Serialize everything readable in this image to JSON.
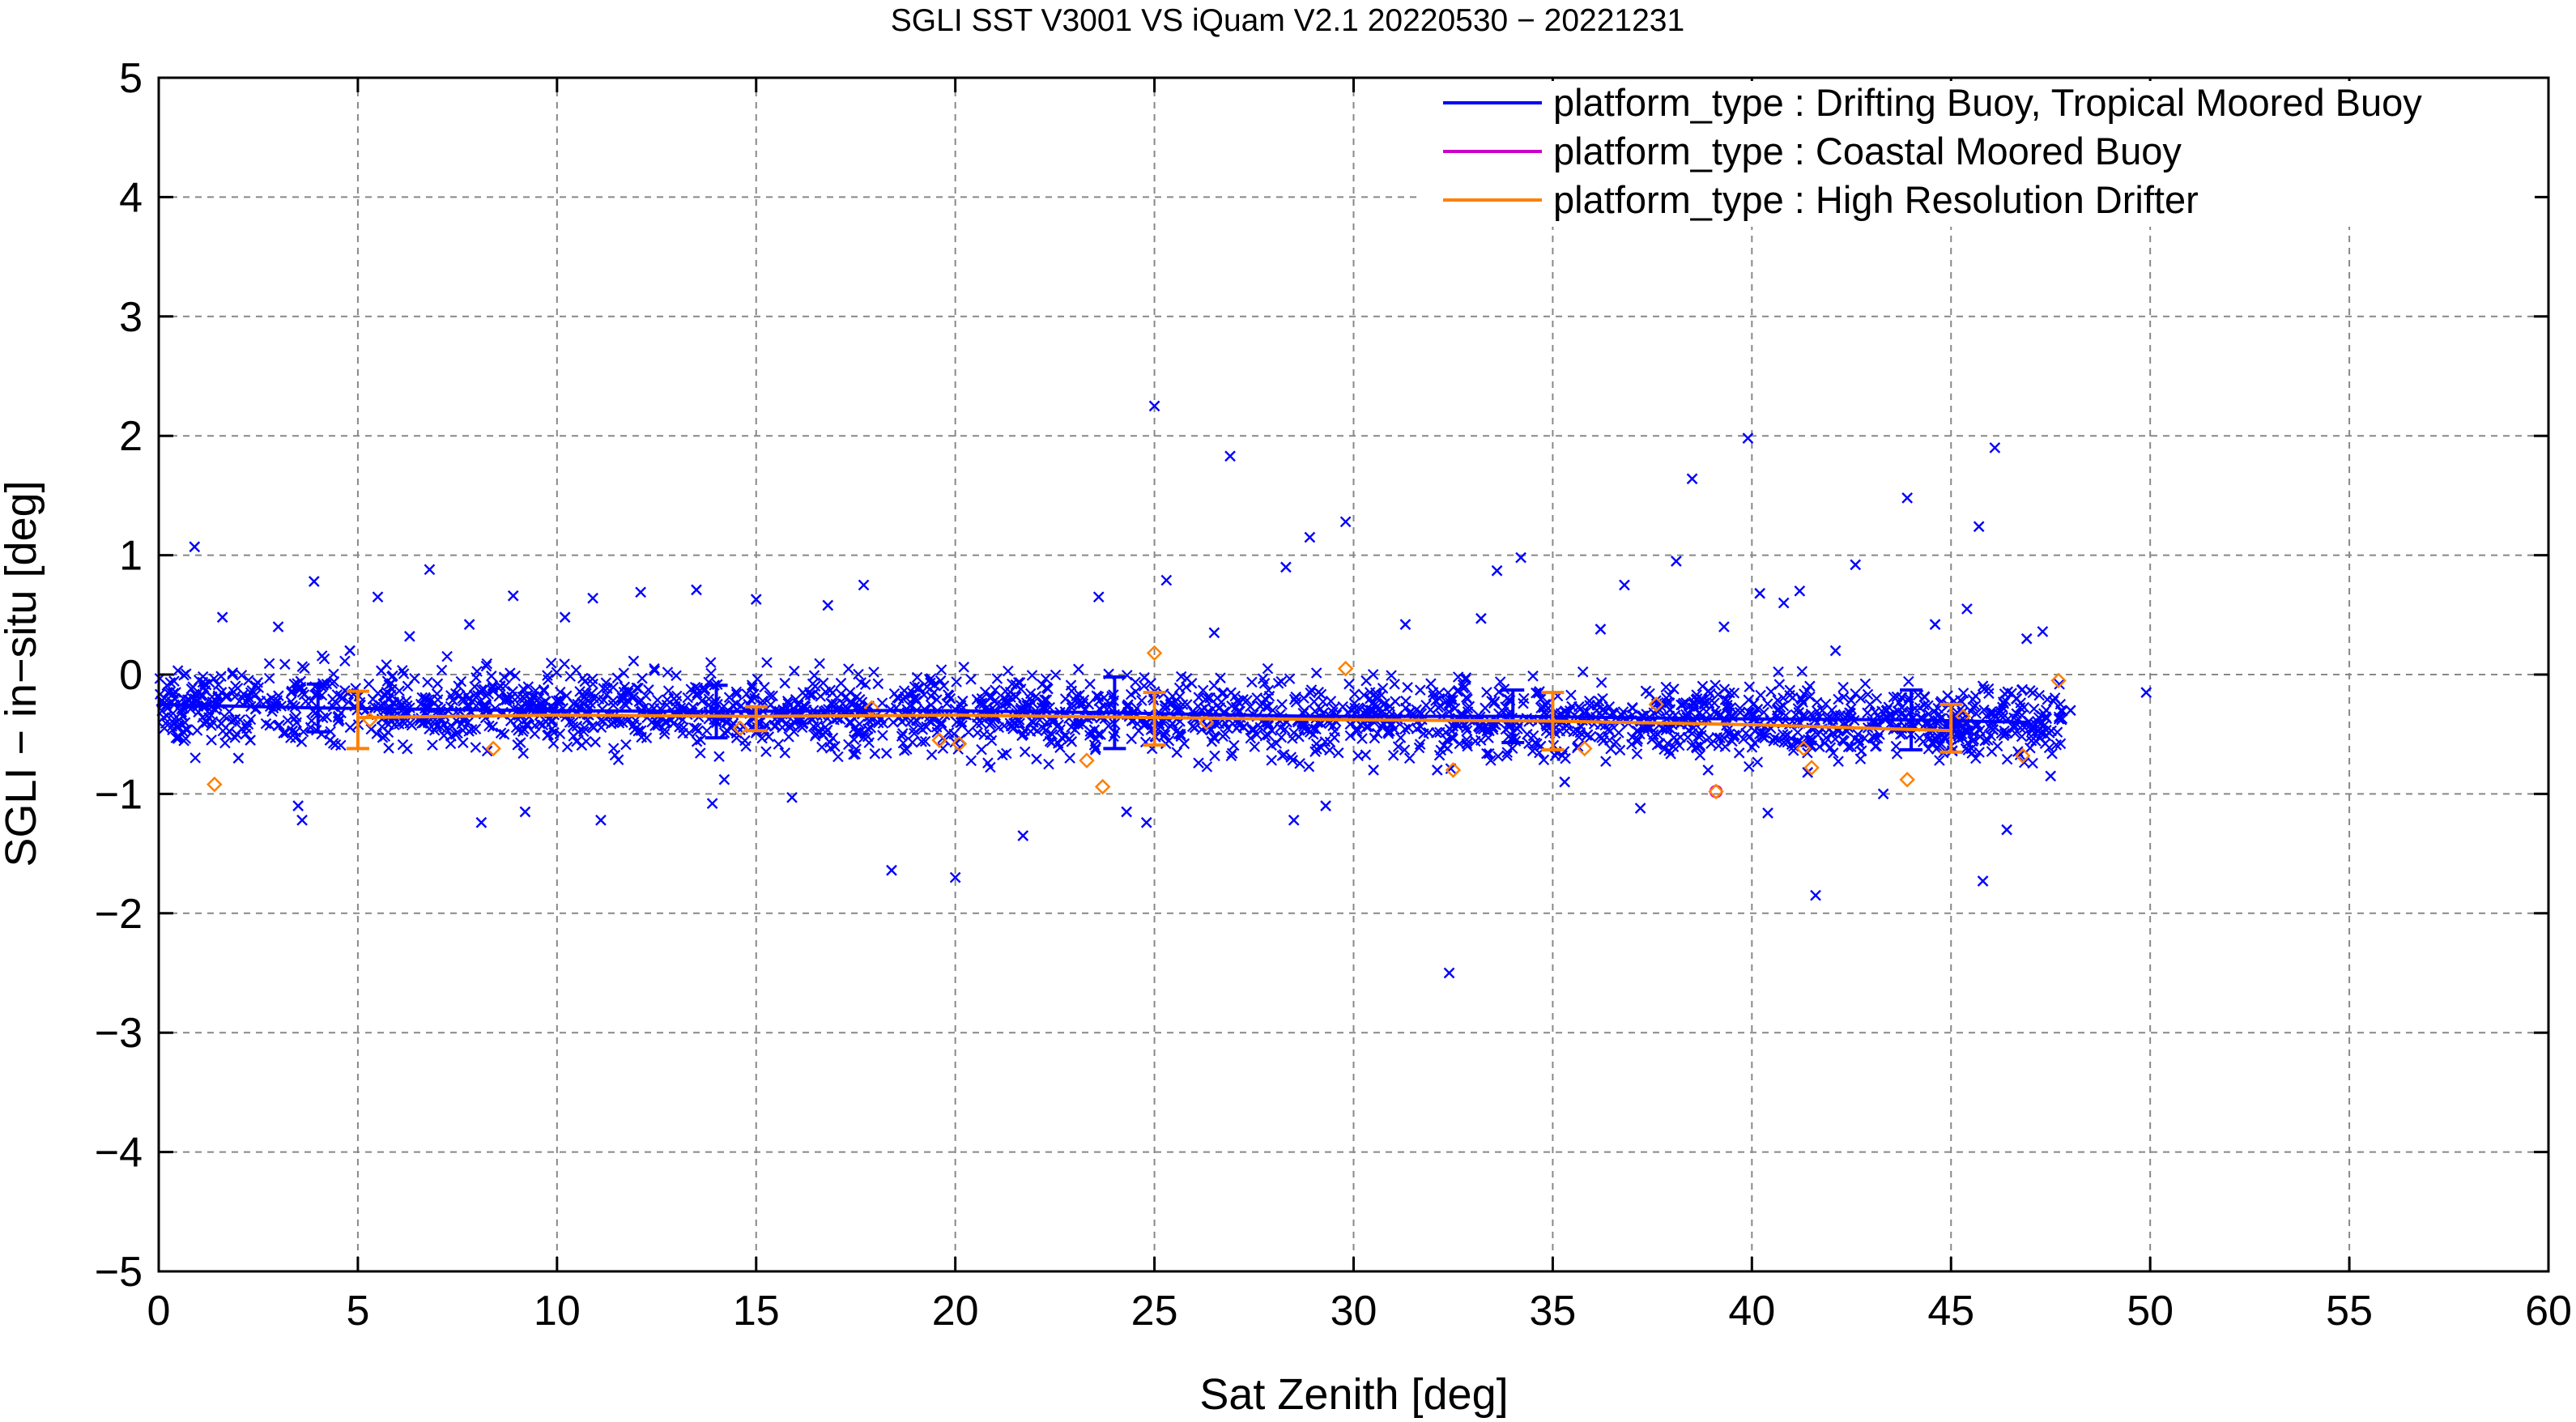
{
  "chart_data": {
    "type": "scatter",
    "title": "SGLI SST V3001 VS iQuam V2.1 20220530 − 20221231",
    "xlabel": "Sat Zenith [deg]",
    "ylabel": "SGLI − in−situ [deg]",
    "xlim": [
      0,
      60
    ],
    "ylim": [
      -5,
      5
    ],
    "xticks": [
      "0",
      "5",
      "10",
      "15",
      "20",
      "25",
      "30",
      "35",
      "40",
      "45",
      "50",
      "55",
      "60"
    ],
    "yticks": [
      "5",
      "4",
      "3",
      "2",
      "1",
      "0",
      "−1",
      "−2",
      "−3",
      "−4",
      "−5"
    ],
    "grid": true,
    "legend_position": "top-right",
    "colors": {
      "drifting": "#0000ff",
      "coastal": "#cc00cc",
      "hrd": "#ff8000",
      "grid": "#888888"
    },
    "series": [
      {
        "name": "platform_type : Drifting Buoy, Tropical Moored Buoy",
        "color": "#0000ff",
        "marker": "x",
        "points": [
          [
            0.2,
            -0.25
          ],
          [
            0.4,
            -0.2
          ],
          [
            0.6,
            -0.35
          ],
          [
            0.9,
            1.07
          ],
          [
            1.2,
            -0.4
          ],
          [
            1.6,
            0.48
          ],
          [
            2.0,
            -0.7
          ],
          [
            2.3,
            -0.55
          ],
          [
            3.0,
            0.4
          ],
          [
            3.5,
            -1.1
          ],
          [
            3.6,
            -1.22
          ],
          [
            3.9,
            0.78
          ],
          [
            4.3,
            -0.55
          ],
          [
            4.8,
            0.2
          ],
          [
            5.5,
            0.65
          ],
          [
            6.3,
            0.32
          ],
          [
            6.8,
            0.88
          ],
          [
            7.8,
            0.42
          ],
          [
            8.1,
            -1.24
          ],
          [
            8.9,
            0.66
          ],
          [
            9.2,
            -1.15
          ],
          [
            10.2,
            0.48
          ],
          [
            10.9,
            0.64
          ],
          [
            11.1,
            -1.22
          ],
          [
            12.1,
            0.69
          ],
          [
            13.5,
            0.71
          ],
          [
            13.9,
            -1.08
          ],
          [
            14.2,
            -0.88
          ],
          [
            15.0,
            0.63
          ],
          [
            15.9,
            -1.03
          ],
          [
            16.8,
            0.58
          ],
          [
            17.7,
            0.75
          ],
          [
            18.4,
            -1.64
          ],
          [
            19.0,
            -0.2
          ],
          [
            20.0,
            -1.7
          ],
          [
            21.7,
            -1.35
          ],
          [
            23.6,
            0.65
          ],
          [
            24.3,
            -1.15
          ],
          [
            24.8,
            -1.24
          ],
          [
            25.0,
            2.25
          ],
          [
            25.3,
            0.79
          ],
          [
            26.5,
            0.35
          ],
          [
            26.9,
            1.83
          ],
          [
            28.3,
            0.9
          ],
          [
            28.5,
            -1.22
          ],
          [
            28.9,
            1.15
          ],
          [
            29.3,
            -1.1
          ],
          [
            29.8,
            1.28
          ],
          [
            30.5,
            -0.8
          ],
          [
            31.3,
            0.42
          ],
          [
            32.1,
            -0.8
          ],
          [
            32.4,
            -2.5
          ],
          [
            33.2,
            0.47
          ],
          [
            33.6,
            0.87
          ],
          [
            34.2,
            0.98
          ],
          [
            34.7,
            -0.6
          ],
          [
            35.3,
            -0.9
          ],
          [
            36.2,
            0.38
          ],
          [
            36.8,
            0.75
          ],
          [
            37.2,
            -1.12
          ],
          [
            38.1,
            0.95
          ],
          [
            38.5,
            1.64
          ],
          [
            38.9,
            -0.8
          ],
          [
            39.3,
            0.4
          ],
          [
            39.9,
            1.98
          ],
          [
            40.2,
            0.68
          ],
          [
            40.4,
            -1.16
          ],
          [
            40.8,
            0.6
          ],
          [
            41.2,
            0.7
          ],
          [
            41.4,
            -0.82
          ],
          [
            41.6,
            -1.85
          ],
          [
            42.1,
            0.2
          ],
          [
            42.6,
            0.92
          ],
          [
            43.3,
            -1.0
          ],
          [
            43.9,
            1.48
          ],
          [
            44.6,
            0.42
          ],
          [
            45.0,
            -0.6
          ],
          [
            45.4,
            0.55
          ],
          [
            45.7,
            1.24
          ],
          [
            45.8,
            -1.73
          ],
          [
            46.1,
            1.9
          ],
          [
            46.4,
            -1.3
          ],
          [
            46.9,
            0.3
          ],
          [
            47.3,
            0.36
          ],
          [
            47.5,
            -0.85
          ],
          [
            48.0,
            -0.3
          ],
          [
            49.9,
            -0.15
          ]
        ]
      },
      {
        "name": "platform_type : Coastal Moored Buoy",
        "color": "#cc00cc",
        "marker": "o",
        "points": [
          [
            39.1,
            -0.98
          ]
        ]
      },
      {
        "name": "platform_type : High Resolution Drifter",
        "color": "#ff8000",
        "marker": "diamond",
        "points": [
          [
            1.4,
            -0.92
          ],
          [
            5.3,
            -0.38
          ],
          [
            8.4,
            -0.62
          ],
          [
            14.6,
            -0.45
          ],
          [
            17.9,
            -0.28
          ],
          [
            19.6,
            -0.55
          ],
          [
            20.1,
            -0.58
          ],
          [
            23.3,
            -0.72
          ],
          [
            23.7,
            -0.94
          ],
          [
            25.0,
            0.18
          ],
          [
            26.3,
            -0.4
          ],
          [
            29.8,
            0.05
          ],
          [
            32.5,
            -0.8
          ],
          [
            35.8,
            -0.62
          ],
          [
            37.6,
            -0.25
          ],
          [
            39.1,
            -0.98
          ],
          [
            41.3,
            -0.62
          ],
          [
            41.5,
            -0.78
          ],
          [
            43.9,
            -0.88
          ],
          [
            45.3,
            -0.35
          ],
          [
            46.8,
            -0.68
          ],
          [
            47.7,
            -0.05
          ]
        ]
      }
    ],
    "mean_lines": [
      {
        "series": "platform_type : Drifting Buoy, Tropical Moored Buoy",
        "color": "#0000ff",
        "x": [
          0,
          4,
          9,
          14,
          19,
          24,
          29,
          34,
          39,
          44,
          47
        ],
        "y": [
          -0.25,
          -0.28,
          -0.3,
          -0.31,
          -0.3,
          -0.32,
          -0.35,
          -0.35,
          -0.37,
          -0.38,
          -0.4
        ],
        "errors": [
          {
            "x": 4,
            "y": -0.28,
            "err": 0.2
          },
          {
            "x": 14,
            "y": -0.31,
            "err": 0.22
          },
          {
            "x": 24,
            "y": -0.32,
            "err": 0.3
          },
          {
            "x": 34,
            "y": -0.35,
            "err": 0.22
          },
          {
            "x": 44,
            "y": -0.38,
            "err": 0.25
          }
        ]
      },
      {
        "series": "platform_type : High Resolution Drifter",
        "color": "#ff8000",
        "x": [
          5,
          10,
          15,
          20,
          25,
          30,
          35,
          40,
          45
        ],
        "y": [
          -0.36,
          -0.34,
          -0.35,
          -0.34,
          -0.36,
          -0.38,
          -0.39,
          -0.42,
          -0.47
        ],
        "errors": [
          {
            "x": 5,
            "y": -0.38,
            "err": 0.24
          },
          {
            "x": 15,
            "y": -0.37,
            "err": 0.1
          },
          {
            "x": 25,
            "y": -0.37,
            "err": 0.22
          },
          {
            "x": 35,
            "y": -0.39,
            "err": 0.24
          },
          {
            "x": 45,
            "y": -0.45,
            "err": 0.2
          }
        ]
      }
    ]
  }
}
